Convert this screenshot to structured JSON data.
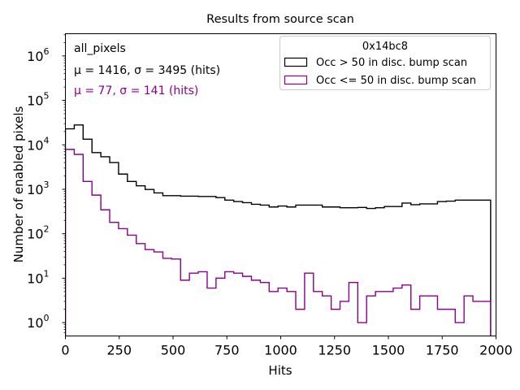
{
  "chart_data": {
    "type": "histogram-step",
    "title": "Results from source scan",
    "xlabel": "Hits",
    "ylabel": "Number of enabled pixels",
    "xlim": [
      0,
      2000
    ],
    "ylim_log10": [
      -0.3,
      6.5
    ],
    "yscale": "log",
    "x_ticks": [
      "0",
      "250",
      "500",
      "750",
      "1000",
      "1250",
      "1500",
      "1750",
      "2000"
    ],
    "x_tick_values": [
      0,
      250,
      500,
      750,
      1000,
      1250,
      1500,
      1750,
      2000
    ],
    "y_ticks": [
      {
        "base": "10",
        "exp": "0",
        "value": 1
      },
      {
        "base": "10",
        "exp": "1",
        "value": 10
      },
      {
        "base": "10",
        "exp": "2",
        "value": 100
      },
      {
        "base": "10",
        "exp": "3",
        "value": 1000
      },
      {
        "base": "10",
        "exp": "4",
        "value": 10000
      },
      {
        "base": "10",
        "exp": "5",
        "value": 100000
      },
      {
        "base": "10",
        "exp": "6",
        "value": 1000000
      }
    ],
    "bin_range": [
      0,
      1975
    ],
    "n_bins": 48,
    "series": [
      {
        "name": "Occ > 50 in disc. bump scan",
        "color": "#000000",
        "values": [
          22900,
          28000,
          13400,
          6700,
          5400,
          4000,
          2200,
          1500,
          1200,
          990,
          830,
          720,
          720,
          700,
          700,
          690,
          690,
          650,
          570,
          530,
          500,
          460,
          440,
          400,
          420,
          400,
          440,
          440,
          440,
          400,
          400,
          385,
          385,
          390,
          370,
          385,
          410,
          410,
          490,
          450,
          470,
          470,
          530,
          540,
          570,
          570,
          570,
          570
        ]
      },
      {
        "name": "Occ <= 50 in disc. bump scan",
        "color": "#8b008b",
        "values": [
          7900,
          6100,
          1500,
          740,
          345,
          180,
          130,
          93,
          60,
          44,
          39,
          28,
          27,
          9,
          13,
          14,
          6,
          10,
          14,
          13,
          11,
          9,
          8,
          5,
          6,
          5,
          2,
          13,
          5,
          4,
          2,
          3,
          8,
          1,
          4,
          5,
          5,
          6,
          7,
          2,
          4,
          4,
          2,
          2,
          1,
          4,
          3,
          3
        ]
      }
    ],
    "annotations": [
      {
        "text": "all_pixels",
        "color": "#000000"
      },
      {
        "text": "μ = 1416, σ = 3495 (hits)",
        "color": "#000000"
      },
      {
        "text": "μ = 77, σ = 141 (hits)",
        "color": "#8b008b"
      }
    ],
    "legend": {
      "title": "0x14bc8",
      "placement": "top-right",
      "entries": [
        "Occ > 50 in disc. bump scan",
        "Occ <= 50 in disc. bump scan"
      ]
    },
    "grid": false
  }
}
